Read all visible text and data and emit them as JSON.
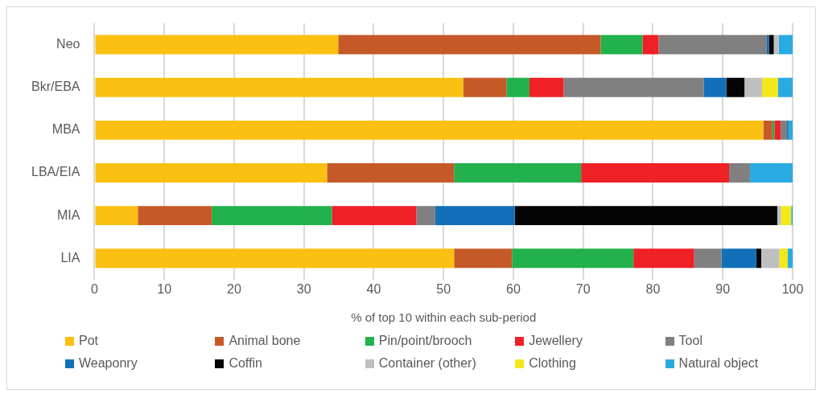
{
  "chart_data": {
    "type": "bar",
    "orientation": "horizontal",
    "stacked": true,
    "categories": [
      "Neo",
      "Bkr/EBA",
      "MBA",
      "LBA/EIA",
      "MIA",
      "LIA"
    ],
    "xlabel": "% of top 10 within each sub-period",
    "xlim": [
      0,
      100
    ],
    "xticks": [
      0,
      10,
      20,
      30,
      40,
      50,
      60,
      70,
      80,
      90,
      100
    ],
    "grid": "x",
    "legend": "bottom",
    "series": [
      {
        "name": "Pot",
        "color": "#fbc012",
        "values": [
          34.9,
          52.8,
          95.8,
          33.3,
          6.2,
          51.5
        ]
      },
      {
        "name": "Animal bone",
        "color": "#c55a28",
        "values": [
          37.6,
          6.2,
          1.3,
          18.2,
          10.6,
          8.3
        ]
      },
      {
        "name": "Pin/point/brooch",
        "color": "#22b14c",
        "values": [
          6.0,
          3.3,
          0.3,
          18.2,
          17.2,
          17.4
        ]
      },
      {
        "name": "Jewellery",
        "color": "#ef2026",
        "values": [
          2.3,
          4.9,
          0.9,
          21.2,
          12.1,
          8.7
        ]
      },
      {
        "name": "Tool",
        "color": "#808080",
        "values": [
          15.5,
          20.1,
          0.9,
          3.0,
          2.7,
          3.9
        ]
      },
      {
        "name": "Weaponry",
        "color": "#1170b8",
        "values": [
          0.3,
          3.2,
          0.2,
          0,
          11.4,
          5.0
        ]
      },
      {
        "name": "Coffin",
        "color": "#040404",
        "values": [
          0.7,
          2.6,
          0,
          0,
          37.6,
          0.7
        ]
      },
      {
        "name": "Container (other)",
        "color": "#bfbfbf",
        "values": [
          0.7,
          2.5,
          0,
          0,
          0.5,
          2.6
        ]
      },
      {
        "name": "Clothing",
        "color": "#f2e81a",
        "values": [
          0,
          2.3,
          0,
          0,
          1.5,
          1.2
        ]
      },
      {
        "name": "Natural object",
        "color": "#29abe2",
        "values": [
          2.0,
          2.1,
          0.6,
          6.1,
          0.2,
          0.7
        ]
      }
    ]
  }
}
